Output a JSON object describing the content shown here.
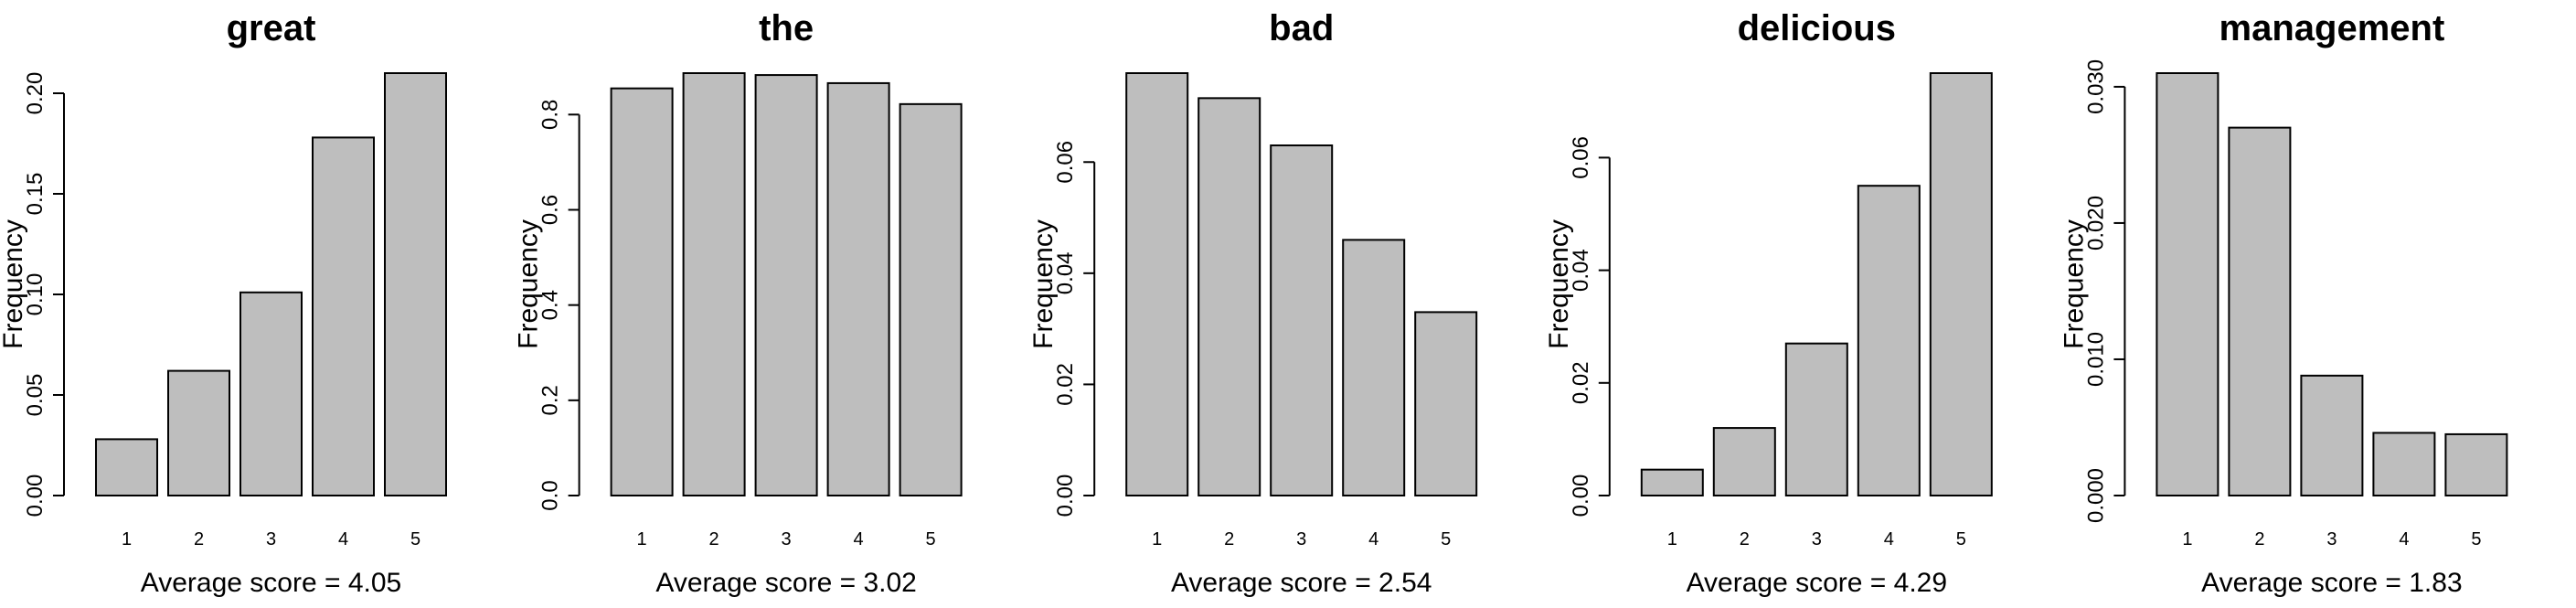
{
  "colors": {
    "bar_fill": "#bebebe",
    "bar_stroke": "#000000"
  },
  "chart_data": [
    {
      "type": "bar",
      "title": "great",
      "ylabel": "Frequency",
      "xlabel": "Average score = 4.05",
      "categories": [
        "1",
        "2",
        "3",
        "4",
        "5"
      ],
      "values": [
        0.028,
        0.062,
        0.101,
        0.178,
        0.21
      ],
      "ylim": [
        0,
        0.21
      ],
      "yticks": [
        "0.00",
        "0.05",
        "0.10",
        "0.15",
        "0.20"
      ],
      "grid": false,
      "legend": false
    },
    {
      "type": "bar",
      "title": "the",
      "ylabel": "Frequency",
      "xlabel": "Average score = 3.02",
      "categories": [
        "1",
        "2",
        "3",
        "4",
        "5"
      ],
      "values": [
        0.855,
        0.887,
        0.883,
        0.866,
        0.822
      ],
      "ylim": [
        0,
        0.887
      ],
      "yticks": [
        "0.0",
        "0.2",
        "0.4",
        "0.6",
        "0.8"
      ],
      "grid": false,
      "legend": false
    },
    {
      "type": "bar",
      "title": "bad",
      "ylabel": "Frequency",
      "xlabel": "Average score = 2.54",
      "categories": [
        "1",
        "2",
        "3",
        "4",
        "5"
      ],
      "values": [
        0.076,
        0.0715,
        0.063,
        0.046,
        0.033
      ],
      "ylim": [
        0,
        0.076
      ],
      "yticks": [
        "0.00",
        "0.02",
        "0.04",
        "0.06"
      ],
      "grid": false,
      "legend": false
    },
    {
      "type": "bar",
      "title": "delicious",
      "ylabel": "Frequency",
      "xlabel": "Average score = 4.29",
      "categories": [
        "1",
        "2",
        "3",
        "4",
        "5"
      ],
      "values": [
        0.0046,
        0.012,
        0.027,
        0.055,
        0.075
      ],
      "ylim": [
        0,
        0.075
      ],
      "yticks": [
        "0.00",
        "0.02",
        "0.04",
        "0.06"
      ],
      "grid": false,
      "legend": false
    },
    {
      "type": "bar",
      "title": "management",
      "ylabel": "Frequency",
      "xlabel": "Average score = 1.83",
      "categories": [
        "1",
        "2",
        "3",
        "4",
        "5"
      ],
      "values": [
        0.031,
        0.027,
        0.0088,
        0.0046,
        0.0045
      ],
      "ylim": [
        0,
        0.031
      ],
      "yticks": [
        "0.000",
        "0.010",
        "0.020",
        "0.030"
      ],
      "grid": false,
      "legend": false
    }
  ]
}
